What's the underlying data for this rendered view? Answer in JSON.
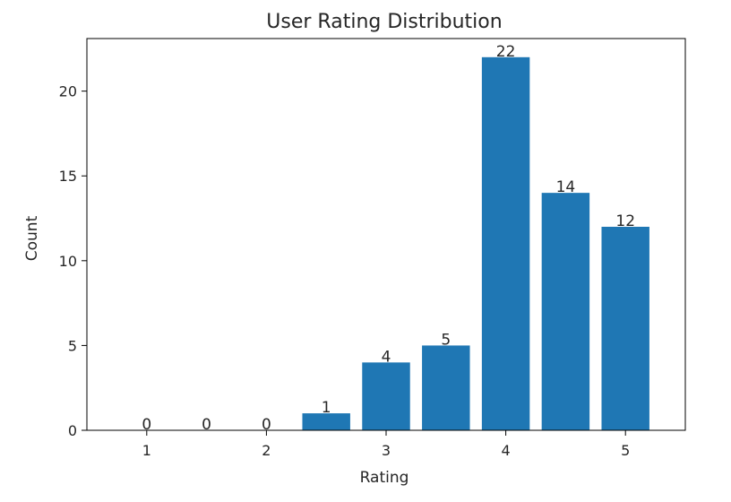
{
  "chart_data": {
    "type": "bar",
    "title": "User Rating Distribution",
    "xlabel": "Rating",
    "ylabel": "Count",
    "categories": [
      1.0,
      1.5,
      2.0,
      2.5,
      3.0,
      3.5,
      4.0,
      4.5,
      5.0
    ],
    "values": [
      0,
      0,
      0,
      1,
      4,
      5,
      22,
      14,
      12
    ],
    "data_labels": [
      "0",
      "0",
      "0",
      "1",
      "4",
      "5",
      "22",
      "14",
      "12"
    ],
    "x_ticks": [
      1,
      2,
      3,
      4,
      5
    ],
    "x_tick_labels": [
      "1",
      "2",
      "3",
      "4",
      "5"
    ],
    "y_ticks": [
      0,
      5,
      10,
      15,
      20
    ],
    "y_tick_labels": [
      "0",
      "5",
      "10",
      "15",
      "20"
    ],
    "xlim": [
      0.5,
      5.5
    ],
    "ylim": [
      0,
      23.1
    ],
    "grid": false,
    "bar_color": "#1f77b4"
  }
}
